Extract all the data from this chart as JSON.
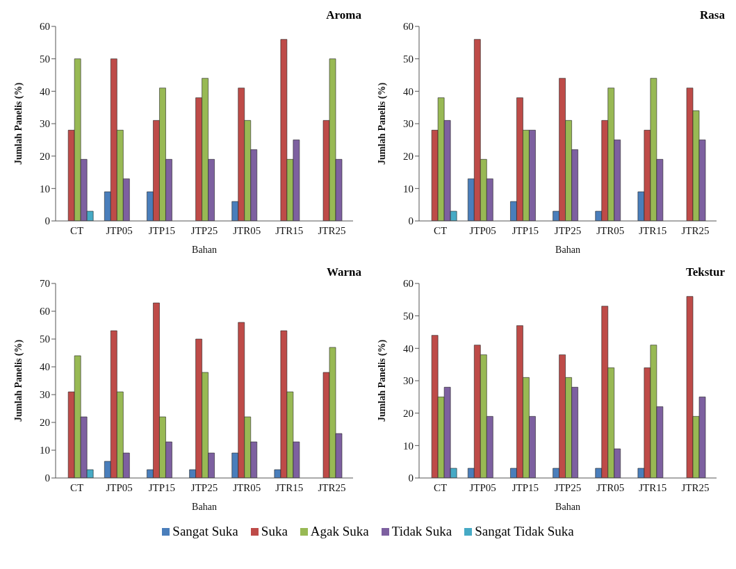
{
  "chart_data": [
    {
      "type": "bar",
      "title": "Aroma",
      "xlabel": "Bahan",
      "ylabel": "Jumlah Panelis (%)",
      "categories": [
        "CT",
        "JTP05",
        "JTP15",
        "JTP25",
        "JTR05",
        "JTR15",
        "JTR25"
      ],
      "ylim": [
        0,
        60
      ],
      "yticks": [
        0,
        10,
        20,
        30,
        40,
        50,
        60
      ],
      "legend": "bottom",
      "series": [
        {
          "name": "Sangat Suka",
          "color": "#4a7ebb",
          "values": [
            0,
            9,
            9,
            0,
            6,
            0,
            0
          ]
        },
        {
          "name": "Suka",
          "color": "#be4b48",
          "values": [
            28,
            50,
            31,
            38,
            41,
            56,
            31
          ]
        },
        {
          "name": "Agak Suka",
          "color": "#98b954",
          "values": [
            50,
            28,
            41,
            44,
            31,
            19,
            50
          ]
        },
        {
          "name": "Tidak Suka",
          "color": "#7d60a0",
          "values": [
            19,
            13,
            19,
            19,
            22,
            25,
            19
          ]
        },
        {
          "name": "Sangat Tidak Suka",
          "color": "#46aac5",
          "values": [
            3,
            0,
            0,
            0,
            0,
            0,
            0
          ]
        }
      ]
    },
    {
      "type": "bar",
      "title": "Rasa",
      "xlabel": "Bahan",
      "ylabel": "Jumlah Panelis (%)",
      "categories": [
        "CT",
        "JTP05",
        "JTP15",
        "JTP25",
        "JTR05",
        "JTR15",
        "JTR25"
      ],
      "ylim": [
        0,
        60
      ],
      "yticks": [
        0,
        10,
        20,
        30,
        40,
        50,
        60
      ],
      "series": [
        {
          "color": "#4a7ebb",
          "values": [
            0,
            13,
            6,
            3,
            3,
            9,
            0
          ]
        },
        {
          "color": "#be4b48",
          "values": [
            28,
            56,
            38,
            44,
            31,
            28,
            41
          ]
        },
        {
          "color": "#98b954",
          "values": [
            38,
            19,
            28,
            31,
            41,
            44,
            34
          ]
        },
        {
          "color": "#7d60a0",
          "values": [
            31,
            13,
            28,
            22,
            25,
            19,
            25
          ]
        },
        {
          "color": "#46aac5",
          "values": [
            3,
            0,
            0,
            0,
            0,
            0,
            0
          ]
        }
      ]
    },
    {
      "type": "bar",
      "title": "Warna",
      "xlabel": "Bahan",
      "ylabel": "Jumlah Panelis (%)",
      "categories": [
        "CT",
        "JTP05",
        "JTP15",
        "JTP25",
        "JTR05",
        "JTR15",
        "JTR25"
      ],
      "ylim": [
        0,
        70
      ],
      "yticks": [
        0,
        10,
        20,
        30,
        40,
        50,
        60,
        70
      ],
      "series": [
        {
          "color": "#4a7ebb",
          "values": [
            0,
            6,
            3,
            3,
            9,
            3,
            0
          ]
        },
        {
          "color": "#be4b48",
          "values": [
            31,
            53,
            63,
            50,
            56,
            53,
            38
          ]
        },
        {
          "color": "#98b954",
          "values": [
            44,
            31,
            22,
            38,
            22,
            31,
            47
          ]
        },
        {
          "color": "#7d60a0",
          "values": [
            22,
            9,
            13,
            9,
            13,
            13,
            16
          ]
        },
        {
          "color": "#46aac5",
          "values": [
            3,
            0,
            0,
            0,
            0,
            0,
            0
          ]
        }
      ]
    },
    {
      "type": "bar",
      "title": "Tekstur",
      "xlabel": "Bahan",
      "ylabel": "Jumlah Panelis (%)",
      "categories": [
        "CT",
        "JTP05",
        "JTP15",
        "JTP25",
        "JTR05",
        "JTR15",
        "JTR25"
      ],
      "ylim": [
        0,
        60
      ],
      "yticks": [
        0,
        10,
        20,
        30,
        40,
        50,
        60
      ],
      "series": [
        {
          "color": "#4a7ebb",
          "values": [
            0,
            3,
            3,
            3,
            3,
            3,
            0
          ]
        },
        {
          "color": "#be4b48",
          "values": [
            44,
            41,
            47,
            38,
            53,
            34,
            56
          ]
        },
        {
          "color": "#98b954",
          "values": [
            25,
            38,
            31,
            31,
            34,
            41,
            19
          ]
        },
        {
          "color": "#7d60a0",
          "values": [
            28,
            19,
            19,
            28,
            9,
            22,
            25
          ]
        },
        {
          "color": "#46aac5",
          "values": [
            3,
            0,
            0,
            0,
            0,
            0,
            0
          ]
        }
      ]
    }
  ]
}
